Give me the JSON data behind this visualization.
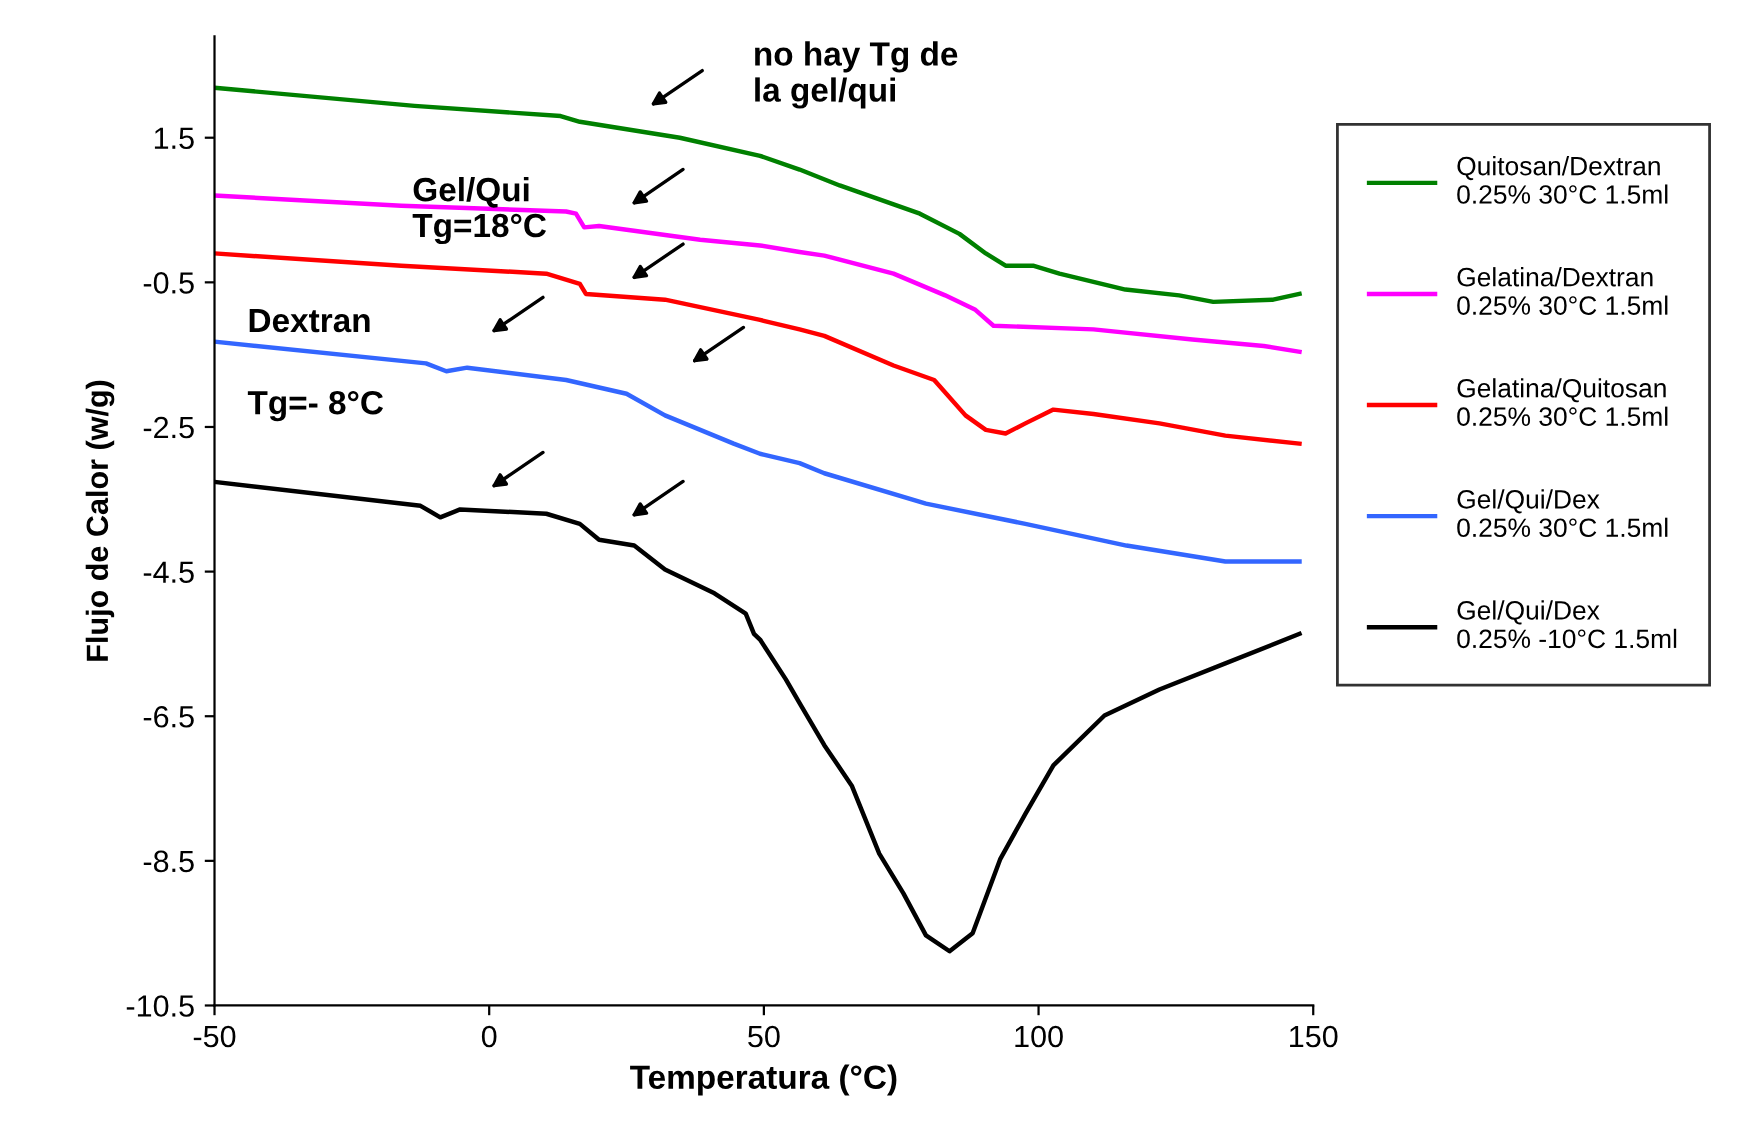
{
  "chart_data": {
    "type": "line",
    "xlabel": "Temperatura (°C)",
    "ylabel": "Flujo de Calor (w/g)",
    "xlim": [
      -50,
      150
    ],
    "xticks": [
      -50,
      0,
      50,
      100,
      150
    ],
    "ylim": [
      -10.5,
      2.9
    ],
    "yticks": [
      -10.5,
      -8.5,
      -6.5,
      -4.5,
      -2.5,
      -0.5,
      1.5
    ],
    "grid": false,
    "legend": "right",
    "marker": "none",
    "line_style": "solid",
    "series": [
      {
        "name": "Quitosan/Dextran\n0.25% 30°C 1.5ml",
        "color": "#008000",
        "x": [
          -50,
          -13.6,
          13,
          16.5,
          34.7,
          49.3,
          56.5,
          63.8,
          78.4,
          85.6,
          90.4,
          94,
          99,
          103.8,
          115.8,
          125.6,
          131.8,
          142.7,
          147.5
        ],
        "values": [
          2.19,
          1.94,
          1.8,
          1.72,
          1.5,
          1.25,
          1.06,
          0.84,
          0.45,
          0.17,
          -0.1,
          -0.27,
          -0.27,
          -0.38,
          -0.6,
          -0.68,
          -0.77,
          -0.74,
          -0.66
        ]
      },
      {
        "name": "Gelatina/Dextran\n0.25% 30°C 1.5ml",
        "color": "#ff00ff",
        "x": [
          -50,
          -16,
          14,
          15.8,
          17.3,
          20,
          38.4,
          49.3,
          56.5,
          61,
          73.6,
          83,
          88.5,
          91.8,
          110,
          128,
          141,
          147.5
        ],
        "values": [
          0.7,
          0.56,
          0.48,
          0.45,
          0.26,
          0.28,
          0.09,
          0.01,
          -0.08,
          -0.13,
          -0.38,
          -0.68,
          -0.88,
          -1.1,
          -1.15,
          -1.29,
          -1.38,
          -1.46
        ]
      },
      {
        "name": "Gelatina/Quitosan\n0.25% 30°C 1.5ml",
        "color": "#ff0000",
        "x": [
          -50,
          -16,
          10.4,
          16.5,
          17.6,
          32,
          49.3,
          56.5,
          61,
          73.6,
          81,
          86.7,
          90.4,
          94,
          97.6,
          102.7,
          110,
          122,
          134,
          147.5
        ],
        "values": [
          -0.1,
          -0.27,
          -0.38,
          -0.52,
          -0.66,
          -0.74,
          -1.02,
          -1.15,
          -1.24,
          -1.65,
          -1.85,
          -2.34,
          -2.54,
          -2.59,
          -2.45,
          -2.26,
          -2.32,
          -2.45,
          -2.62,
          -2.73
        ]
      },
      {
        "name": "Gel/Qui/Dex\n0.25% 30°C 1.5ml",
        "color": "#3366ff",
        "x": [
          -50,
          -11.5,
          -7.8,
          -4,
          14,
          25,
          32,
          44.5,
          49.3,
          56.5,
          61,
          79.5,
          97.6,
          116,
          134,
          147.5
        ],
        "values": [
          -1.32,
          -1.62,
          -1.73,
          -1.68,
          -1.85,
          -2.04,
          -2.34,
          -2.73,
          -2.87,
          -3.0,
          -3.14,
          -3.56,
          -3.84,
          -4.14,
          -4.36,
          -4.36
        ]
      },
      {
        "name": "Gel/Qui/Dex\n0.25% -10°C 1.5ml",
        "color": "#000000",
        "x": [
          -50,
          -12.5,
          -8.9,
          -5.3,
          10.4,
          16.5,
          20,
          26.4,
          32,
          41,
          46.7,
          48.2,
          49.3,
          54,
          56.5,
          61,
          66,
          71,
          75.4,
          79.5,
          83.8,
          88,
          93,
          97.6,
          102.7,
          112,
          122,
          134,
          147.5
        ],
        "values": [
          -3.26,
          -3.59,
          -3.75,
          -3.64,
          -3.7,
          -3.84,
          -4.06,
          -4.14,
          -4.47,
          -4.8,
          -5.08,
          -5.36,
          -5.44,
          -5.99,
          -6.32,
          -6.9,
          -7.46,
          -8.4,
          -8.95,
          -9.53,
          -9.75,
          -9.5,
          -8.48,
          -7.85,
          -7.18,
          -6.49,
          -6.13,
          -5.77,
          -5.36
        ]
      }
    ],
    "annotations": [
      "no hay Tg de\nla gel/qui",
      "Gel/Qui\nTg=18°C",
      "Dextran",
      "Tg=- 8°C"
    ]
  }
}
